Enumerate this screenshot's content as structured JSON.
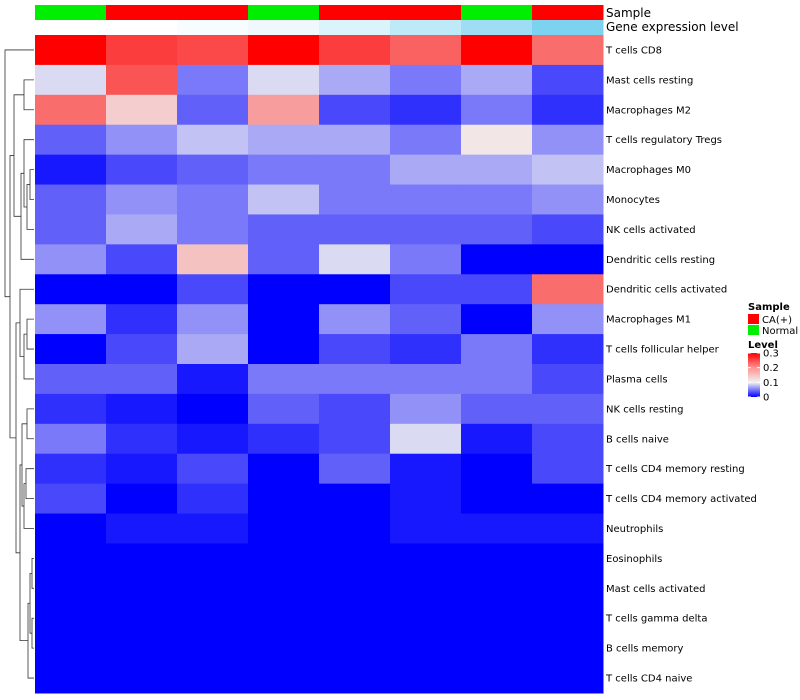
{
  "chart_data": {
    "type": "heatmap",
    "annotation_labels": [
      "Sample",
      "Gene expression level"
    ],
    "sample_annotation": [
      "Normal",
      "CA(+)",
      "CA(+)",
      "Normal",
      "CA(+)",
      "CA(+)",
      "Normal",
      "CA(+)"
    ],
    "gene_expression_annotation": [
      0.0,
      0.0,
      0.05,
      0.1,
      0.22,
      0.4,
      0.6,
      0.8
    ],
    "rows": [
      "T cells CD8",
      "Mast cells resting",
      "Macrophages M2",
      "T cells regulatory  Tregs",
      "Macrophages M0",
      "Monocytes",
      "NK cells activated",
      "Dendritic cells resting",
      "Dendritic cells activated",
      "Macrophages M1",
      "T cells follicular helper",
      "Plasma cells",
      "NK cells resting",
      "B cells naive",
      "T cells CD4 memory resting",
      "T cells CD4 memory activated",
      "Neutrophils",
      "Eosinophils",
      "Mast cells activated",
      "T cells gamma delta",
      "B cells memory",
      "T cells CD4 naive"
    ],
    "values": [
      [
        0.3,
        0.25,
        0.24,
        0.3,
        0.25,
        0.22,
        0.3,
        0.21
      ],
      [
        0.09,
        0.23,
        0.05,
        0.09,
        0.07,
        0.05,
        0.07,
        0.03
      ],
      [
        0.21,
        0.13,
        0.04,
        0.17,
        0.03,
        0.02,
        0.05,
        0.02
      ],
      [
        0.04,
        0.06,
        0.08,
        0.07,
        0.07,
        0.05,
        0.11,
        0.06
      ],
      [
        0.01,
        0.03,
        0.04,
        0.05,
        0.05,
        0.07,
        0.07,
        0.08
      ],
      [
        0.04,
        0.06,
        0.05,
        0.08,
        0.05,
        0.05,
        0.05,
        0.06
      ],
      [
        0.04,
        0.07,
        0.05,
        0.04,
        0.04,
        0.04,
        0.04,
        0.03
      ],
      [
        0.06,
        0.03,
        0.14,
        0.04,
        0.09,
        0.05,
        0.0,
        0.0
      ],
      [
        0.0,
        0.0,
        0.03,
        0.0,
        0.0,
        0.03,
        0.03,
        0.21
      ],
      [
        0.06,
        0.02,
        0.06,
        0.0,
        0.06,
        0.04,
        0.0,
        0.06
      ],
      [
        0.0,
        0.03,
        0.07,
        0.0,
        0.03,
        0.02,
        0.05,
        0.02
      ],
      [
        0.04,
        0.04,
        0.01,
        0.05,
        0.05,
        0.05,
        0.05,
        0.03
      ],
      [
        0.02,
        0.01,
        0.0,
        0.04,
        0.03,
        0.06,
        0.04,
        0.04
      ],
      [
        0.05,
        0.02,
        0.01,
        0.02,
        0.03,
        0.09,
        0.01,
        0.03
      ],
      [
        0.02,
        0.01,
        0.03,
        0.0,
        0.04,
        0.01,
        0.0,
        0.03
      ],
      [
        0.03,
        0.0,
        0.02,
        0.0,
        0.0,
        0.01,
        0.0,
        0.0
      ],
      [
        0.0,
        0.01,
        0.01,
        0.0,
        0.0,
        0.01,
        0.01,
        0.01
      ],
      [
        0.0,
        0.0,
        0.0,
        0.0,
        0.0,
        0.0,
        0.0,
        0.0
      ],
      [
        0.0,
        0.0,
        0.0,
        0.0,
        0.0,
        0.0,
        0.0,
        0.0
      ],
      [
        0.0,
        0.0,
        0.0,
        0.0,
        0.0,
        0.0,
        0.0,
        0.0
      ],
      [
        0.0,
        0.0,
        0.0,
        0.0,
        0.0,
        0.0,
        0.0,
        0.0
      ],
      [
        0.0,
        0.0,
        0.0,
        0.0,
        0.0,
        0.0,
        0.0,
        0.0
      ]
    ],
    "color_scale": {
      "min": 0,
      "mid": 0.1,
      "max": 0.3,
      "low_color": "#0000ff",
      "mid_color": "#f2f2f2",
      "high_color": "#ff0000"
    },
    "legend": {
      "sample_title": "Sample",
      "sample_entries": [
        {
          "label": "CA(+)",
          "color": "#ff0000"
        },
        {
          "label": "Normal",
          "color": "#00ee00"
        }
      ],
      "level_title": "Level",
      "level_ticks": [
        "0.3",
        "0.2",
        "0.1",
        "0"
      ],
      "placement": "right"
    },
    "dendrogram": "rows"
  }
}
